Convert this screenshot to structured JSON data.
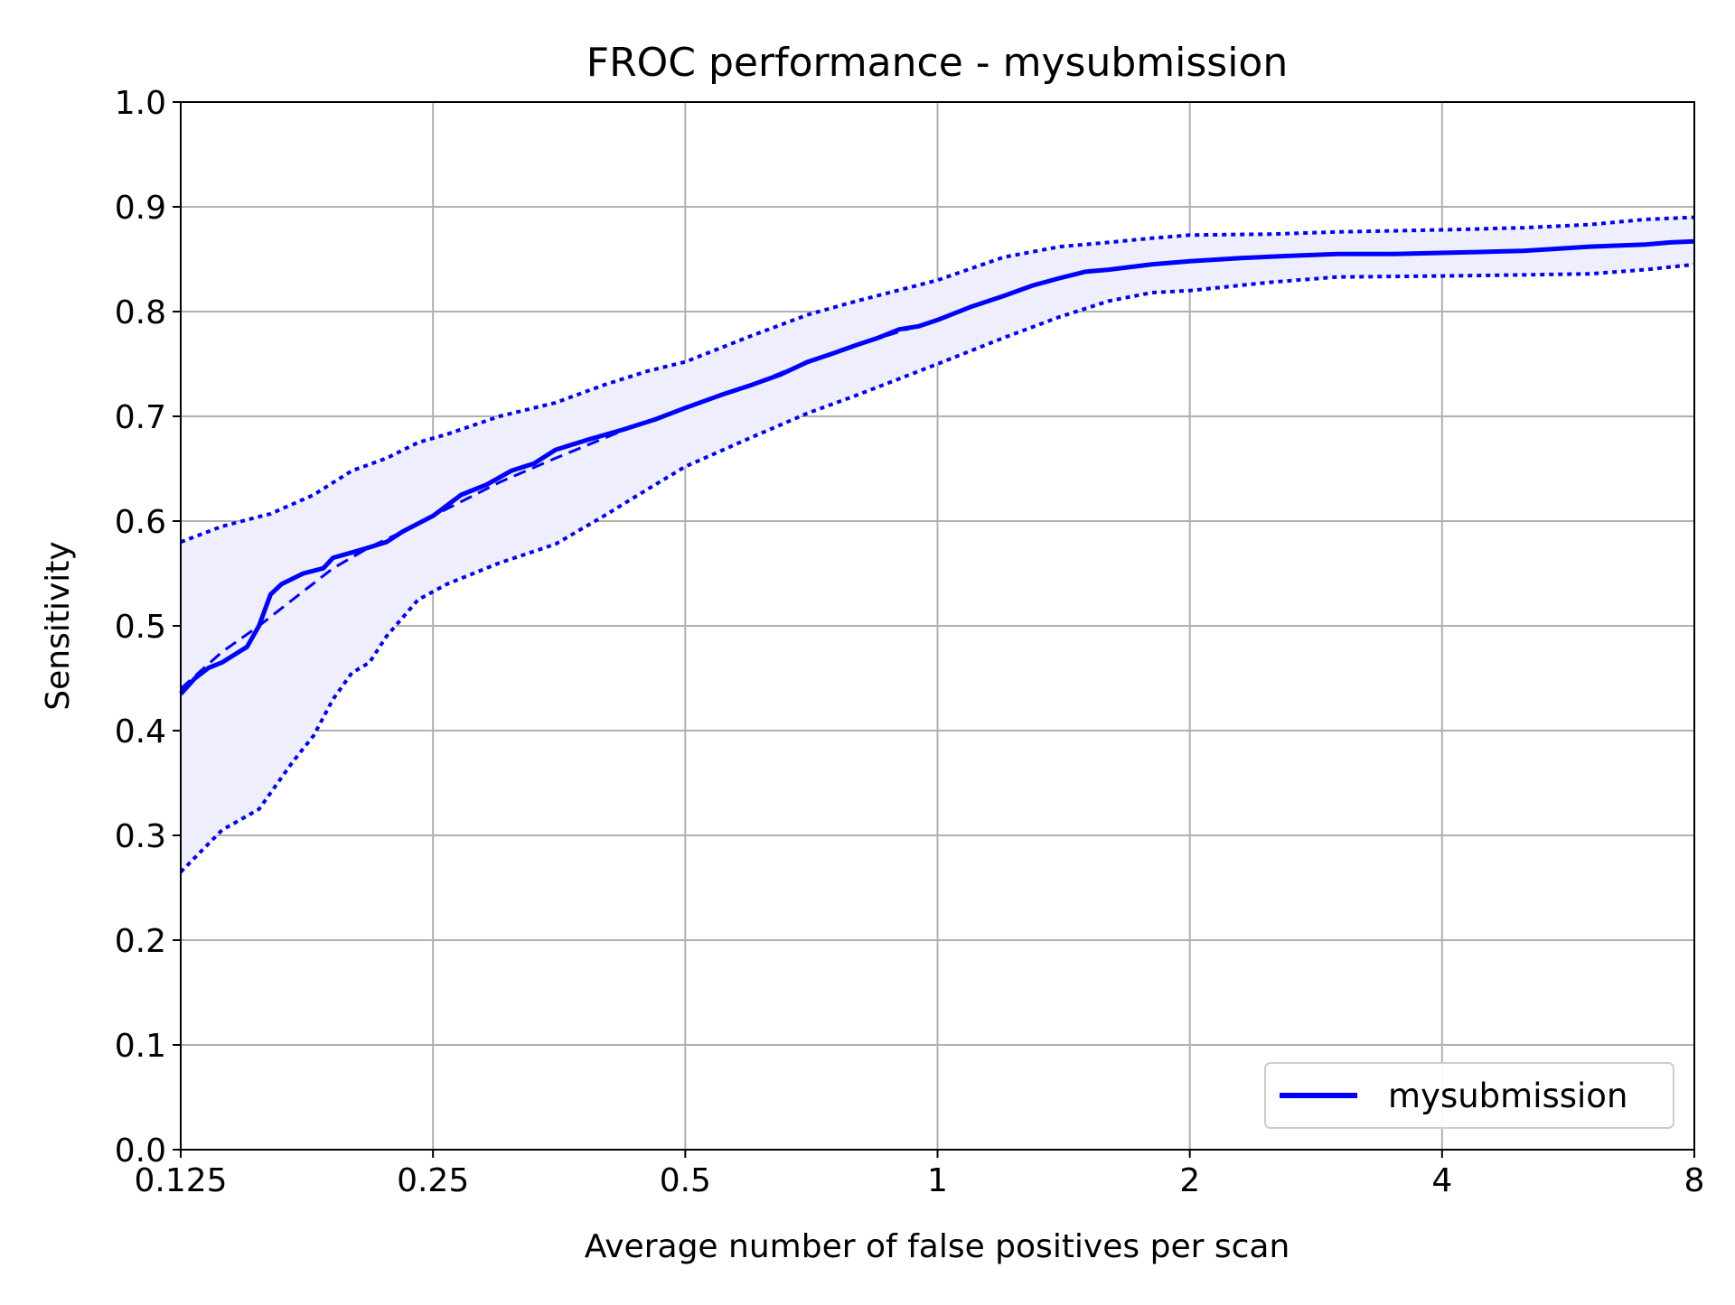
{
  "chart_data": {
    "type": "line",
    "title": "FROC performance - mysubmission",
    "xlabel": "Average number of false positives per scan",
    "ylabel": "Sensitivity",
    "x_scale": "log2",
    "xlim": [
      0.125,
      8
    ],
    "ylim": [
      0.0,
      1.0
    ],
    "x_ticks": [
      0.125,
      0.25,
      0.5,
      1,
      2,
      4,
      8
    ],
    "x_tick_labels": [
      "0.125",
      "0.25",
      "0.5",
      "1",
      "2",
      "4",
      "8"
    ],
    "y_ticks": [
      0.0,
      0.1,
      0.2,
      0.3,
      0.4,
      0.5,
      0.6,
      0.7,
      0.8,
      0.9,
      1.0
    ],
    "y_tick_labels": [
      "0.0",
      "0.1",
      "0.2",
      "0.3",
      "0.4",
      "0.5",
      "0.6",
      "0.7",
      "0.8",
      "0.9",
      "1.0"
    ],
    "grid": true,
    "legend": {
      "position": "lower-right",
      "entries": [
        "mysubmission"
      ]
    },
    "colors": {
      "line": "#0000ff",
      "band_fill": "#eeeefc",
      "grid": "#b0b0b0"
    },
    "series": [
      {
        "name": "mysubmission",
        "style": "solid",
        "x": [
          0.125,
          0.13,
          0.135,
          0.14,
          0.15,
          0.155,
          0.16,
          0.165,
          0.17,
          0.175,
          0.185,
          0.19,
          0.2,
          0.21,
          0.22,
          0.23,
          0.25,
          0.27,
          0.29,
          0.31,
          0.33,
          0.35,
          0.38,
          0.42,
          0.46,
          0.5,
          0.55,
          0.6,
          0.65,
          0.7,
          0.75,
          0.8,
          0.85,
          0.9,
          0.95,
          1.0,
          1.1,
          1.2,
          1.3,
          1.4,
          1.5,
          1.6,
          1.8,
          2.0,
          2.3,
          2.6,
          3.0,
          3.5,
          4.0,
          4.5,
          5.0,
          5.5,
          6.0,
          6.5,
          7.0,
          7.5,
          8.0
        ],
        "y": [
          0.435,
          0.45,
          0.46,
          0.465,
          0.48,
          0.5,
          0.53,
          0.54,
          0.545,
          0.55,
          0.555,
          0.565,
          0.57,
          0.575,
          0.58,
          0.59,
          0.605,
          0.625,
          0.635,
          0.648,
          0.655,
          0.668,
          0.677,
          0.687,
          0.697,
          0.708,
          0.72,
          0.73,
          0.74,
          0.752,
          0.76,
          0.768,
          0.775,
          0.783,
          0.786,
          0.792,
          0.805,
          0.815,
          0.825,
          0.832,
          0.838,
          0.84,
          0.845,
          0.848,
          0.851,
          0.853,
          0.855,
          0.855,
          0.856,
          0.857,
          0.858,
          0.86,
          0.862,
          0.863,
          0.864,
          0.866,
          0.867
        ]
      },
      {
        "name": "",
        "style": "dashed",
        "x": [
          0.125,
          0.14,
          0.155,
          0.17,
          0.19,
          0.21,
          0.23,
          0.25,
          0.3,
          0.35,
          0.42,
          0.5,
          0.6,
          0.7,
          0.8,
          1.0
        ],
        "y": [
          0.44,
          0.475,
          0.5,
          0.525,
          0.555,
          0.575,
          0.59,
          0.605,
          0.637,
          0.66,
          0.686,
          0.708,
          0.73,
          0.752,
          0.768,
          0.792
        ]
      },
      {
        "name": "",
        "style": "dotted",
        "x": [
          0.125,
          0.14,
          0.16,
          0.18,
          0.2,
          0.22,
          0.24,
          0.26,
          0.3,
          0.35,
          0.4,
          0.45,
          0.5,
          0.6,
          0.7,
          0.8,
          1.0,
          1.2,
          1.4,
          1.6,
          1.8,
          2.0,
          2.5,
          3.0,
          4.0,
          5.0,
          6.0,
          7.0,
          8.0
        ],
        "y": [
          0.58,
          0.595,
          0.607,
          0.625,
          0.648,
          0.66,
          0.675,
          0.683,
          0.7,
          0.713,
          0.73,
          0.743,
          0.752,
          0.777,
          0.797,
          0.81,
          0.83,
          0.852,
          0.862,
          0.866,
          0.87,
          0.873,
          0.874,
          0.876,
          0.878,
          0.88,
          0.883,
          0.888,
          0.89
        ]
      },
      {
        "name": "",
        "style": "dotted",
        "x": [
          0.125,
          0.14,
          0.155,
          0.17,
          0.18,
          0.19,
          0.2,
          0.21,
          0.22,
          0.24,
          0.26,
          0.3,
          0.35,
          0.4,
          0.45,
          0.5,
          0.6,
          0.7,
          0.8,
          1.0,
          1.2,
          1.4,
          1.6,
          1.8,
          2.0,
          2.5,
          3.0,
          4.0,
          5.0,
          6.0,
          7.0,
          8.0
        ],
        "y": [
          0.265,
          0.305,
          0.325,
          0.37,
          0.395,
          0.43,
          0.455,
          0.465,
          0.49,
          0.525,
          0.54,
          0.56,
          0.578,
          0.605,
          0.63,
          0.652,
          0.68,
          0.703,
          0.72,
          0.75,
          0.775,
          0.795,
          0.81,
          0.818,
          0.82,
          0.828,
          0.833,
          0.834,
          0.835,
          0.836,
          0.84,
          0.845
        ]
      }
    ]
  }
}
